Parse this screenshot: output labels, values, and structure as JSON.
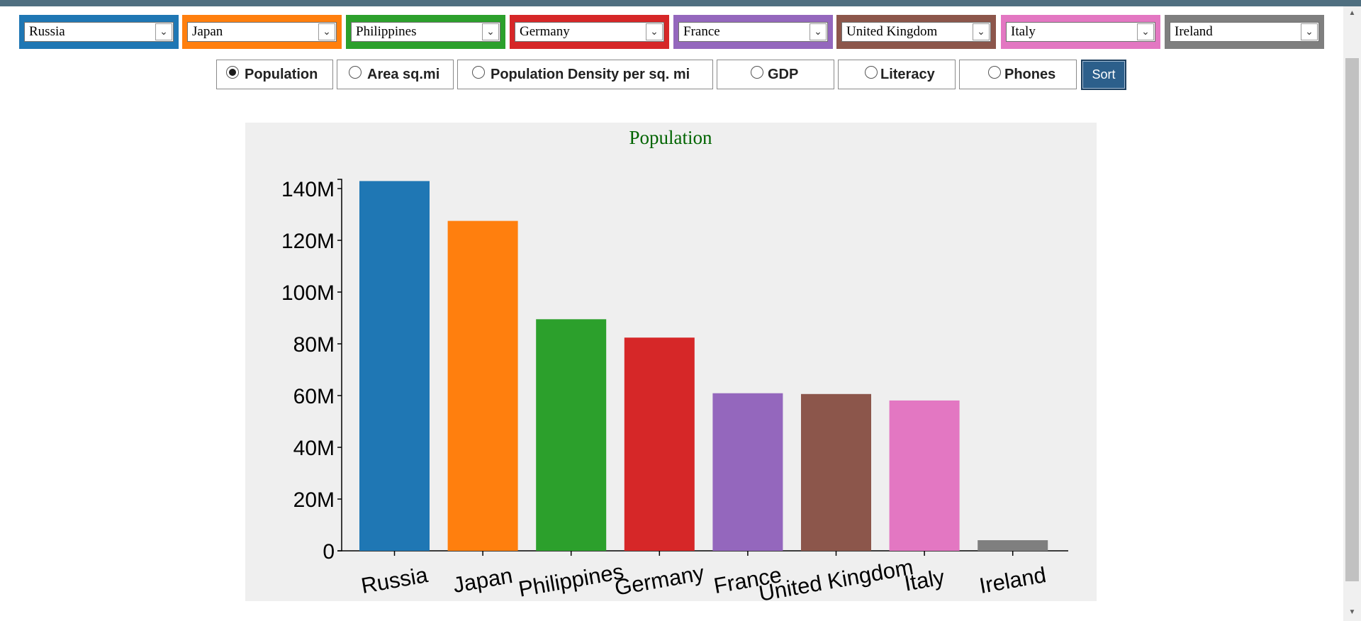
{
  "selectors": [
    {
      "value": "Russia",
      "color": "#1f77b4"
    },
    {
      "value": "Japan",
      "color": "#ff7f0e"
    },
    {
      "value": "Philippines",
      "color": "#2ca02c"
    },
    {
      "value": "Germany",
      "color": "#d62728"
    },
    {
      "value": "France",
      "color": "#9467bd"
    },
    {
      "value": "United Kingdom",
      "color": "#8c564b"
    },
    {
      "value": "Italy",
      "color": "#e377c2"
    },
    {
      "value": "Ireland",
      "color": "#7f7f7f"
    }
  ],
  "metrics": [
    {
      "label": "Population",
      "checked": true
    },
    {
      "label": "Area sq.mi",
      "checked": false
    },
    {
      "label": "Population Density per sq. mi",
      "checked": false
    },
    {
      "label": "GDP",
      "checked": false
    },
    {
      "label": "Literacy",
      "checked": false
    },
    {
      "label": "Phones",
      "checked": false
    }
  ],
  "sort_label": "Sort",
  "chart_data": {
    "type": "bar",
    "title": "Population",
    "categories": [
      "Russia",
      "Japan",
      "Philippines",
      "Germany",
      "France",
      "United Kingdom",
      "Italy",
      "Ireland"
    ],
    "values": [
      142900000,
      127500000,
      89500000,
      82400000,
      60900000,
      60600000,
      58100000,
      4100000
    ],
    "colors": [
      "#1f77b4",
      "#ff7f0e",
      "#2ca02c",
      "#d62728",
      "#9467bd",
      "#8c564b",
      "#e377c2",
      "#7f7f7f"
    ],
    "y_ticks": [
      0,
      20000000,
      40000000,
      60000000,
      80000000,
      100000000,
      120000000,
      140000000
    ],
    "y_tick_labels": [
      "0",
      "20M",
      "40M",
      "60M",
      "80M",
      "100M",
      "120M",
      "140M"
    ],
    "ylim": [
      0,
      143000000
    ],
    "title_color": "#006400",
    "grid": false
  }
}
